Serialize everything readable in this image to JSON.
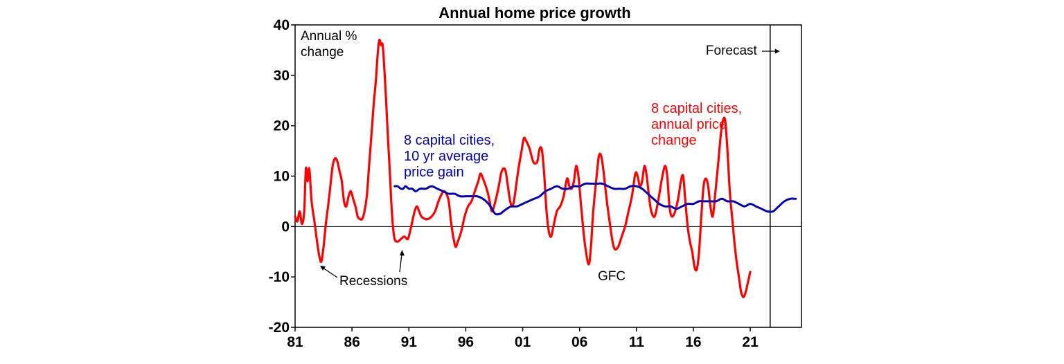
{
  "colors": {
    "annual_change": "#ff0000",
    "ten_year_average": "#0000bb",
    "axis": "#000000"
  },
  "chart_data": {
    "type": "line",
    "title": "Annual home price growth",
    "ylabel": [
      "Annual %",
      "change"
    ],
    "xlabel": "",
    "ylim": [
      -20,
      40
    ],
    "xlim": [
      1981,
      2025.5
    ],
    "y_ticks": [
      "40",
      "30",
      "20",
      "10",
      "0",
      "-10",
      "-20"
    ],
    "x_ticks": [
      "81",
      "86",
      "91",
      "96",
      "01",
      "06",
      "11",
      "16",
      "21"
    ],
    "grid": false,
    "forecast": {
      "label": "Forecast",
      "x": 2022.75
    },
    "annotations": [
      "Recessions",
      "GFC"
    ],
    "series": [
      {
        "name": "8 capital cities, annual price change",
        "label_lines": [
          "8 capital cities,",
          "annual price",
          "change"
        ],
        "color": "#ff0000",
        "points": [
          [
            1981.0,
            2
          ],
          [
            1981.2,
            1
          ],
          [
            1981.4,
            3
          ],
          [
            1981.6,
            0.5
          ],
          [
            1981.8,
            3
          ],
          [
            1981.95,
            11.5
          ],
          [
            1982.1,
            9
          ],
          [
            1982.25,
            11.5
          ],
          [
            1982.45,
            5
          ],
          [
            1982.7,
            1
          ],
          [
            1982.9,
            -2.5
          ],
          [
            1983.1,
            -5.5
          ],
          [
            1983.3,
            -7
          ],
          [
            1983.5,
            -4
          ],
          [
            1983.7,
            0.5
          ],
          [
            1983.9,
            4
          ],
          [
            1984.1,
            8
          ],
          [
            1984.3,
            12
          ],
          [
            1984.5,
            13.5
          ],
          [
            1984.7,
            13
          ],
          [
            1984.9,
            11
          ],
          [
            1985.1,
            9
          ],
          [
            1985.3,
            5
          ],
          [
            1985.5,
            4
          ],
          [
            1985.7,
            6
          ],
          [
            1985.9,
            7
          ],
          [
            1986.1,
            5.5
          ],
          [
            1986.3,
            4
          ],
          [
            1986.5,
            2
          ],
          [
            1986.7,
            1.5
          ],
          [
            1986.9,
            1.5
          ],
          [
            1987.1,
            3
          ],
          [
            1987.3,
            6
          ],
          [
            1987.5,
            12
          ],
          [
            1987.7,
            18
          ],
          [
            1987.9,
            24
          ],
          [
            1988.1,
            29
          ],
          [
            1988.25,
            34
          ],
          [
            1988.4,
            37
          ],
          [
            1988.55,
            36
          ],
          [
            1988.7,
            36
          ],
          [
            1988.85,
            31
          ],
          [
            1989.0,
            25
          ],
          [
            1989.15,
            18
          ],
          [
            1989.3,
            12
          ],
          [
            1989.45,
            5
          ],
          [
            1989.6,
            0
          ],
          [
            1989.75,
            -2.5
          ],
          [
            1990.0,
            -3
          ],
          [
            1990.3,
            -2.5
          ],
          [
            1990.6,
            -2
          ],
          [
            1990.9,
            -2.5
          ],
          [
            1991.1,
            -1
          ],
          [
            1991.3,
            1
          ],
          [
            1991.5,
            3
          ],
          [
            1991.7,
            4
          ],
          [
            1991.9,
            3
          ],
          [
            1992.1,
            2
          ],
          [
            1992.4,
            1.5
          ],
          [
            1992.7,
            1.5
          ],
          [
            1993.0,
            2
          ],
          [
            1993.3,
            3
          ],
          [
            1993.6,
            5
          ],
          [
            1993.9,
            6.5
          ],
          [
            1994.1,
            7
          ],
          [
            1994.3,
            6.5
          ],
          [
            1994.5,
            5
          ],
          [
            1994.7,
            1
          ],
          [
            1994.9,
            -2
          ],
          [
            1995.1,
            -4
          ],
          [
            1995.3,
            -3
          ],
          [
            1995.6,
            -1
          ],
          [
            1995.9,
            2
          ],
          [
            1996.2,
            4
          ],
          [
            1996.5,
            5
          ],
          [
            1996.8,
            7
          ],
          [
            1997.1,
            9
          ],
          [
            1997.3,
            10.5
          ],
          [
            1997.6,
            9
          ],
          [
            1997.9,
            7
          ],
          [
            1998.1,
            5
          ],
          [
            1998.3,
            3
          ],
          [
            1998.6,
            5
          ],
          [
            1998.9,
            8
          ],
          [
            1999.1,
            10.5
          ],
          [
            1999.3,
            11.5
          ],
          [
            1999.5,
            11
          ],
          [
            1999.7,
            8
          ],
          [
            1999.9,
            5
          ],
          [
            2000.1,
            4
          ],
          [
            2000.3,
            6
          ],
          [
            2000.6,
            11
          ],
          [
            2000.9,
            15
          ],
          [
            2001.1,
            17.5
          ],
          [
            2001.3,
            17
          ],
          [
            2001.6,
            15.5
          ],
          [
            2001.9,
            13
          ],
          [
            2002.1,
            12.5
          ],
          [
            2002.3,
            13
          ],
          [
            2002.5,
            15.5
          ],
          [
            2002.7,
            15
          ],
          [
            2002.9,
            10
          ],
          [
            2003.1,
            3
          ],
          [
            2003.3,
            -1
          ],
          [
            2003.5,
            -2
          ],
          [
            2003.7,
            0
          ],
          [
            2004.0,
            3
          ],
          [
            2004.3,
            4
          ],
          [
            2004.6,
            6
          ],
          [
            2004.9,
            9.5
          ],
          [
            2005.1,
            8
          ],
          [
            2005.3,
            7.5
          ],
          [
            2005.5,
            9
          ],
          [
            2005.7,
            12
          ],
          [
            2005.9,
            10
          ],
          [
            2006.1,
            5
          ],
          [
            2006.3,
            0
          ],
          [
            2006.5,
            -4
          ],
          [
            2006.8,
            -7.5
          ],
          [
            2007.0,
            -4
          ],
          [
            2007.2,
            3
          ],
          [
            2007.5,
            10
          ],
          [
            2007.7,
            14
          ],
          [
            2007.9,
            14
          ],
          [
            2008.1,
            11
          ],
          [
            2008.4,
            5
          ],
          [
            2008.7,
            0
          ],
          [
            2008.9,
            -3
          ],
          [
            2009.1,
            -4.5
          ],
          [
            2009.4,
            -4
          ],
          [
            2009.7,
            -2
          ],
          [
            2010.0,
            0
          ],
          [
            2010.3,
            3
          ],
          [
            2010.6,
            6
          ],
          [
            2010.9,
            10.5
          ],
          [
            2011.1,
            10
          ],
          [
            2011.3,
            8
          ],
          [
            2011.5,
            9
          ],
          [
            2011.7,
            12
          ],
          [
            2011.9,
            10
          ],
          [
            2012.1,
            6
          ],
          [
            2012.3,
            3
          ],
          [
            2012.6,
            2
          ],
          [
            2012.9,
            5
          ],
          [
            2013.2,
            9
          ],
          [
            2013.5,
            12
          ],
          [
            2013.7,
            10
          ],
          [
            2013.9,
            4
          ],
          [
            2014.1,
            2
          ],
          [
            2014.4,
            3
          ],
          [
            2014.7,
            6
          ],
          [
            2014.9,
            9
          ],
          [
            2015.1,
            10
          ],
          [
            2015.3,
            5
          ],
          [
            2015.5,
            0
          ],
          [
            2015.7,
            -3
          ],
          [
            2015.9,
            -5
          ],
          [
            2016.1,
            -8
          ],
          [
            2016.3,
            -8.5
          ],
          [
            2016.5,
            -5
          ],
          [
            2016.7,
            2
          ],
          [
            2016.9,
            8
          ],
          [
            2017.1,
            9.5
          ],
          [
            2017.3,
            8
          ],
          [
            2017.5,
            4
          ],
          [
            2017.7,
            2
          ],
          [
            2017.9,
            6
          ],
          [
            2018.2,
            13
          ],
          [
            2018.4,
            18
          ],
          [
            2018.6,
            21
          ],
          [
            2018.8,
            21
          ],
          [
            2019.0,
            15
          ],
          [
            2019.2,
            7
          ],
          [
            2019.4,
            2
          ],
          [
            2019.6,
            -3
          ],
          [
            2019.8,
            -7
          ],
          [
            2020.0,
            -10
          ],
          [
            2020.2,
            -13
          ],
          [
            2020.4,
            -14
          ],
          [
            2020.6,
            -13
          ],
          [
            2020.8,
            -11
          ],
          [
            2021.0,
            -9
          ]
        ]
      },
      {
        "name": "8 capital cities, 10 yr average price gain",
        "label_lines": [
          "8 capital cities,",
          "10 yr average",
          "price gain"
        ],
        "color": "#0000bb",
        "points": [
          [
            1989.75,
            8
          ],
          [
            1990.0,
            8
          ],
          [
            1990.3,
            7.5
          ],
          [
            1990.5,
            7.5
          ],
          [
            1990.7,
            8
          ],
          [
            1991.0,
            7.5
          ],
          [
            1991.3,
            7.5
          ],
          [
            1991.6,
            7
          ],
          [
            1992.0,
            7.5
          ],
          [
            1992.5,
            7.5
          ],
          [
            1993.0,
            8
          ],
          [
            1993.5,
            7.5
          ],
          [
            1994.0,
            7
          ],
          [
            1994.5,
            6.5
          ],
          [
            1995.0,
            6.5
          ],
          [
            1995.5,
            6
          ],
          [
            1996.0,
            6
          ],
          [
            1996.5,
            6
          ],
          [
            1997.0,
            6
          ],
          [
            1997.5,
            5.5
          ],
          [
            1998.0,
            4.5
          ],
          [
            1998.3,
            3.5
          ],
          [
            1998.6,
            2.5
          ],
          [
            1999.0,
            2.5
          ],
          [
            1999.3,
            3
          ],
          [
            1999.6,
            3.5
          ],
          [
            2000.0,
            4
          ],
          [
            2000.5,
            4
          ],
          [
            2001.0,
            4.5
          ],
          [
            2001.5,
            5
          ],
          [
            2002.0,
            5.5
          ],
          [
            2002.5,
            6
          ],
          [
            2003.0,
            7
          ],
          [
            2003.5,
            7.5
          ],
          [
            2004.0,
            8
          ],
          [
            2004.5,
            7.5
          ],
          [
            2005.0,
            7.5
          ],
          [
            2005.5,
            8
          ],
          [
            2006.0,
            8
          ],
          [
            2006.5,
            8.5
          ],
          [
            2007.0,
            8.5
          ],
          [
            2007.5,
            8.5
          ],
          [
            2008.0,
            8.5
          ],
          [
            2008.5,
            8
          ],
          [
            2009.0,
            7.5
          ],
          [
            2009.5,
            7.5
          ],
          [
            2010.0,
            7.5
          ],
          [
            2010.5,
            8
          ],
          [
            2011.0,
            8
          ],
          [
            2011.5,
            7.5
          ],
          [
            2012.0,
            6.5
          ],
          [
            2012.5,
            5.5
          ],
          [
            2013.0,
            4.5
          ],
          [
            2013.5,
            4
          ],
          [
            2014.0,
            4
          ],
          [
            2014.5,
            3.5
          ],
          [
            2015.0,
            4
          ],
          [
            2015.5,
            4.5
          ],
          [
            2016.0,
            4.5
          ],
          [
            2016.5,
            5
          ],
          [
            2017.0,
            5
          ],
          [
            2017.5,
            5
          ],
          [
            2018.0,
            5
          ],
          [
            2018.5,
            5.5
          ],
          [
            2019.0,
            5
          ],
          [
            2019.5,
            5
          ],
          [
            2020.0,
            4.5
          ],
          [
            2020.5,
            4
          ],
          [
            2021.0,
            4.5
          ],
          [
            2021.5,
            4
          ],
          [
            2022.0,
            3.5
          ],
          [
            2022.5,
            3
          ],
          [
            2023.0,
            3
          ],
          [
            2023.5,
            4
          ],
          [
            2024.0,
            5
          ],
          [
            2024.5,
            5.5
          ],
          [
            2025.0,
            5.5
          ]
        ]
      }
    ]
  }
}
